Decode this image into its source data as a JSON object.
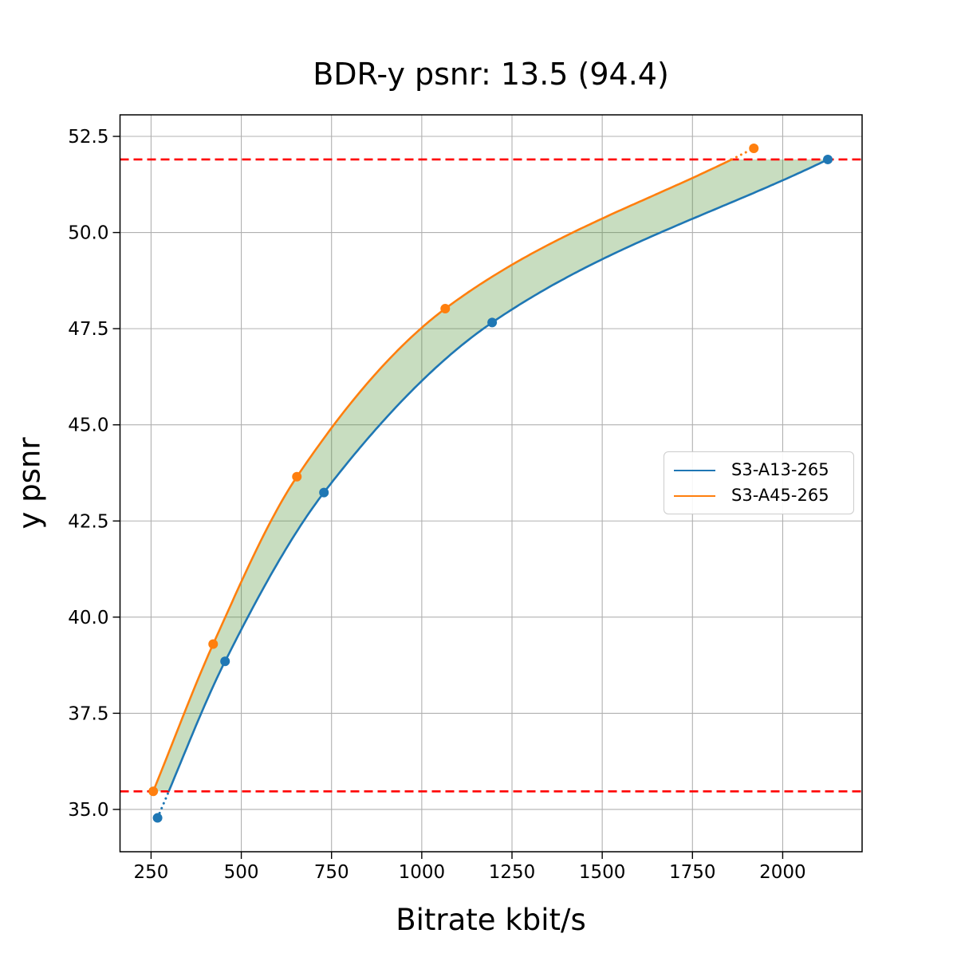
{
  "chart_data": {
    "type": "line",
    "title": "BDR-y psnr: 13.5 (94.4)",
    "xlabel": "Bitrate kbit/s",
    "ylabel": "y psnr",
    "xlim": [
      164,
      2220
    ],
    "ylim": [
      33.9,
      53.06
    ],
    "grid": true,
    "grid_color": "#b0b0b0",
    "xticks": {
      "values": [
        250,
        500,
        750,
        1000,
        1250,
        1500,
        1750,
        2000
      ],
      "labels": [
        "250",
        "500",
        "750",
        "1000",
        "1250",
        "1500",
        "1750",
        "2000"
      ]
    },
    "yticks": {
      "values": [
        35.0,
        37.5,
        40.0,
        42.5,
        45.0,
        47.5,
        50.0,
        52.5
      ],
      "labels": [
        "35.0",
        "37.5",
        "40.0",
        "42.5",
        "45.0",
        "47.5",
        "50.0",
        "52.5"
      ]
    },
    "series": [
      {
        "name": "S3-A13-265",
        "color": "#1f77b4",
        "points": [
          [
            268,
            34.78
          ],
          [
            455,
            38.85
          ],
          [
            729,
            43.24
          ],
          [
            1195,
            47.66
          ],
          [
            2125,
            51.9
          ]
        ]
      },
      {
        "name": "S3-A45-265",
        "color": "#ff7f0e",
        "points": [
          [
            256,
            35.47
          ],
          [
            422,
            39.3
          ],
          [
            654,
            43.65
          ],
          [
            1065,
            48.02
          ],
          [
            1920,
            52.19
          ]
        ]
      }
    ],
    "overlap_region": {
      "low": 35.47,
      "high": 51.9,
      "line_color": "#ff0000",
      "line_style": "dashed",
      "fill_color": "rgba(72,142,45,0.30)"
    },
    "legend": {
      "position": "center right"
    }
  }
}
